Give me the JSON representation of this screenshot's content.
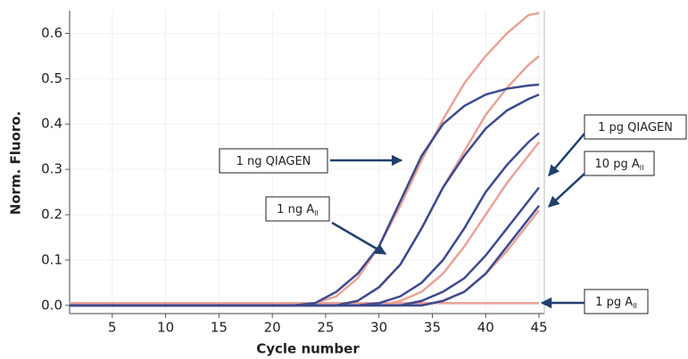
{
  "chart_data": {
    "type": "line",
    "xlabel": "Cycle number",
    "ylabel": "Norm. Fluoro.",
    "x": [
      1,
      20,
      22,
      24,
      26,
      28,
      30,
      32,
      34,
      36,
      38,
      40,
      42,
      44,
      45
    ],
    "series": [
      {
        "color": "#e8a396",
        "values": [
          0.005,
          0.005,
          0.005,
          0.005,
          0.005,
          0.005,
          0.005,
          0.005,
          0.005,
          0.005,
          0.005,
          0.005,
          0.005,
          0.005,
          0.005
        ]
      },
      {
        "color": "#e8a396",
        "values": [
          0,
          0,
          0,
          0.005,
          0.02,
          0.06,
          0.13,
          0.22,
          0.32,
          0.41,
          0.49,
          0.55,
          0.6,
          0.64,
          0.645
        ]
      },
      {
        "color": "#e8a396",
        "values": [
          0,
          0,
          0,
          0,
          0,
          0.01,
          0.04,
          0.09,
          0.17,
          0.26,
          0.34,
          0.42,
          0.48,
          0.53,
          0.55
        ]
      },
      {
        "color": "#e8a396",
        "values": [
          0,
          0,
          0,
          0,
          0,
          0,
          0,
          0.01,
          0.03,
          0.07,
          0.13,
          0.2,
          0.27,
          0.33,
          0.36
        ]
      },
      {
        "color": "#e8a396",
        "values": [
          0,
          0,
          0,
          0,
          0,
          0,
          0,
          0,
          0,
          0.01,
          0.03,
          0.07,
          0.12,
          0.18,
          0.21
        ]
      },
      {
        "color": "#3d4a8f",
        "values": [
          0,
          0,
          0,
          0.005,
          0.03,
          0.07,
          0.13,
          0.23,
          0.33,
          0.4,
          0.44,
          0.465,
          0.478,
          0.485,
          0.487
        ]
      },
      {
        "color": "#3d4a8f",
        "values": [
          0,
          0,
          0,
          0,
          0,
          0.01,
          0.04,
          0.09,
          0.17,
          0.26,
          0.33,
          0.39,
          0.43,
          0.455,
          0.465
        ]
      },
      {
        "color": "#3d4a8f",
        "values": [
          0,
          0,
          0,
          0,
          0,
          0,
          0.005,
          0.02,
          0.05,
          0.1,
          0.17,
          0.25,
          0.31,
          0.36,
          0.38
        ]
      },
      {
        "color": "#3d4a8f",
        "values": [
          0,
          0,
          0,
          0,
          0,
          0,
          0,
          0,
          0.01,
          0.03,
          0.06,
          0.11,
          0.17,
          0.23,
          0.26
        ]
      },
      {
        "color": "#3d4a8f",
        "values": [
          0,
          0,
          0,
          0,
          0,
          0,
          0,
          0,
          0,
          0.01,
          0.03,
          0.07,
          0.13,
          0.19,
          0.22
        ]
      }
    ],
    "xlim": [
      1,
      45.5
    ],
    "ylim": [
      -0.018,
      0.65
    ],
    "xticks": [
      5,
      10,
      15,
      20,
      25,
      30,
      35,
      40,
      45
    ],
    "yticks": [
      {
        "value": 0,
        "label": "0.0"
      },
      0.1,
      0.2,
      0.3,
      0.4,
      0.5,
      0.6
    ],
    "grid": true,
    "annotations": [
      {
        "text": "1 ng QIAGEN"
      },
      {
        "text": "1 ng A",
        "sub": "II"
      },
      {
        "text": "1 pg QIAGEN"
      },
      {
        "text": "10 pg A",
        "sub": "II"
      },
      {
        "text": "1 pg A",
        "sub": "II"
      }
    ]
  }
}
